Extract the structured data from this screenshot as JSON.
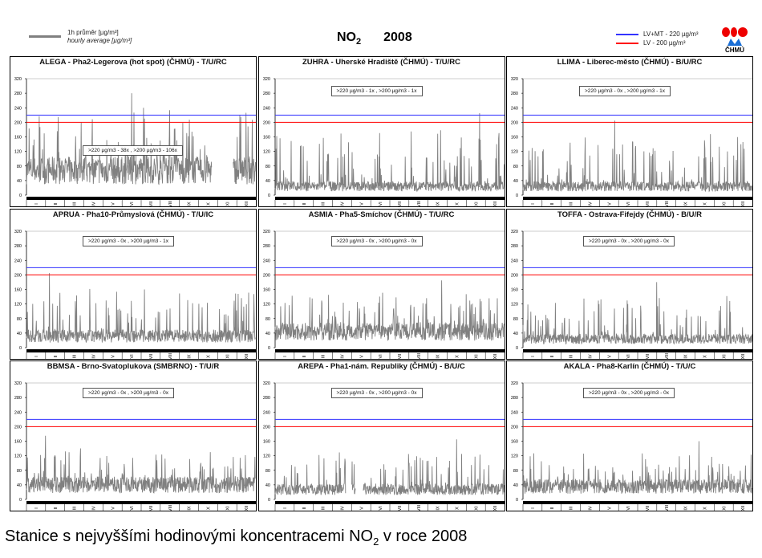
{
  "header": {
    "legend_line1": "1h průměr [µg/m³]",
    "legend_line2": "hourly average [µg/m³]",
    "pollutant": "NO",
    "pollutant_sub": "2",
    "year": "2008",
    "limit1": "LV+MT - 220 µg/m³",
    "limit2": "LV  -  200 µg/m³",
    "logo_text": "ČHMÚ"
  },
  "caption": {
    "pre": "Stanice s nejvyššími hodinovými koncentracemi NO",
    "sub": "2",
    "post": " v roce 2008"
  },
  "colors": {
    "series": "#808080",
    "lv_mt": "#3333ff",
    "lv": "#ff0000",
    "band": "#000000"
  },
  "chart_data": {
    "type": "line",
    "title": "NO2 2008",
    "ylabel": "µg/m³",
    "ylim": [
      0,
      320
    ],
    "yticks": [
      0,
      40,
      80,
      120,
      160,
      200,
      240,
      280,
      320
    ],
    "months": [
      "I",
      "II",
      "III",
      "IV",
      "V",
      "VI",
      "VII",
      "VIII",
      "IX",
      "X",
      "XI",
      "XII"
    ],
    "thresholds": [
      {
        "name": "LV+MT",
        "value": 220
      },
      {
        "name": "LV",
        "value": 200
      }
    ],
    "panels": [
      {
        "title": "ALEGA - Pha2-Legerova (hot spot) (ČHMÚ) - T/U/RC",
        "annotation": ">220 µg/m3 - 38x  ,  >200 µg/m3 - 106x",
        "typical": 85,
        "max": 280,
        "peak_month": 5.5,
        "gaps": [
          [
            9.7,
            10.8
          ]
        ]
      },
      {
        "title": "ZUHRA - Uherské Hradiště (ČHMÚ) - T/U/RC",
        "annotation": ">220 µg/m3 - 1x  ,  >200 µg/m3 - 1x",
        "typical": 30,
        "max": 225,
        "peak_month": 10.7,
        "gaps": []
      },
      {
        "title": "LLIMA - Liberec-město (ČHMÚ) - B/U/RC",
        "annotation": ">220 µg/m3 - 0x  ,  >200 µg/m3 - 1x",
        "typical": 30,
        "max": 205,
        "peak_month": 4.8,
        "gaps": []
      },
      {
        "title": "APRUA - Pha10-Průmyslová (ČHMÚ) - T/U/IC",
        "annotation": ">220 µg/m3 - 0x  ,  >200 µg/m3 - 1x",
        "typical": 40,
        "max": 205,
        "peak_month": 1.2,
        "gaps": []
      },
      {
        "title": "ASMIA - Pha5-Smíchov (ČHMÚ) - T/U/RC",
        "annotation": ">220 µg/m3 - 0x  ,  >200 µg/m3 - 0x",
        "typical": 55,
        "max": 185,
        "peak_month": 8.7,
        "gaps": []
      },
      {
        "title": "TOFFA - Ostrava-Fifejdy (ČHMÚ) - B/U/R",
        "annotation": ">220 µg/m3 - 0x  ,  >200 µg/m3 - 0x",
        "typical": 30,
        "max": 180,
        "peak_month": 7.0,
        "gaps": []
      },
      {
        "title": "BBMSA - Brno-Svatoplukova (SMBRNO) - T/U/R",
        "annotation": ">220 µg/m3 - 0x  ,  >200 µg/m3 - 0x",
        "typical": 50,
        "max": 175,
        "peak_month": 1.0,
        "gaps": []
      },
      {
        "title": "AREPA - Pha1-nám. Republiky (ČHMÚ) - B/U/C",
        "annotation": ">220 µg/m3 - 0x  ,  >200 µg/m3 - 0x",
        "typical": 35,
        "max": 165,
        "peak_month": 9.5,
        "gaps": [
          [
            3.7,
            4.0
          ],
          [
            4.2,
            4.6
          ]
        ]
      },
      {
        "title": "AKALA - Pha8-Karlín (ČHMÚ) - T/U/C",
        "annotation": ">220 µg/m3 - 0x  ,  >200 µg/m3 - 0x",
        "typical": 45,
        "max": 160,
        "peak_month": 9.2,
        "gaps": []
      }
    ]
  }
}
